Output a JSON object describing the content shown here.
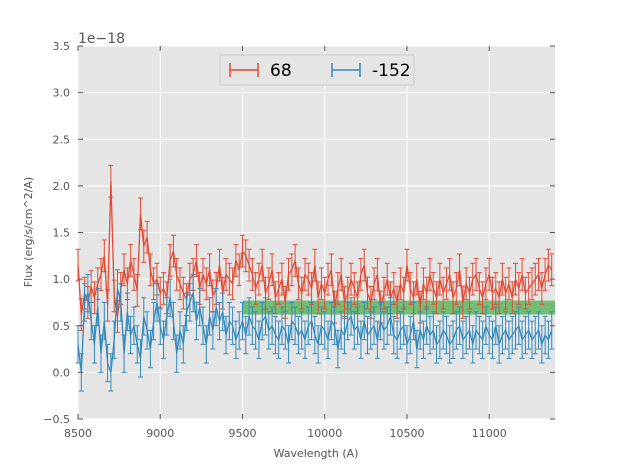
{
  "chart_data": {
    "type": "line",
    "title": "",
    "xlabel": "Wavelength (A)",
    "ylabel": "Flux (erg/s/cm^2/A)",
    "y_offset_label": "1e−18",
    "xlim": [
      8500,
      11400
    ],
    "ylim": [
      -0.5,
      3.5
    ],
    "xticks": [
      8500,
      9000,
      9500,
      10000,
      10500,
      11000
    ],
    "yticks": [
      -0.5,
      0.0,
      0.5,
      1.0,
      1.5,
      2.0,
      2.5,
      3.0,
      3.5
    ],
    "ytick_labels": [
      "−0.5",
      "0.0",
      "0.5",
      "1.0",
      "1.5",
      "2.0",
      "2.5",
      "3.0",
      "3.5"
    ],
    "grid": true,
    "background": "#e5e5e5",
    "legend_position": "top-center",
    "band": {
      "x": [
        9500,
        11400
      ],
      "y": [
        0.62,
        0.77
      ],
      "color": "#4cae4c"
    },
    "x": [
      8500,
      8520,
      8540,
      8560,
      8580,
      8600,
      8620,
      8640,
      8660,
      8680,
      8700,
      8720,
      8740,
      8760,
      8780,
      8800,
      8820,
      8840,
      8860,
      8880,
      8900,
      8920,
      8940,
      8960,
      8980,
      9000,
      9020,
      9040,
      9060,
      9080,
      9100,
      9120,
      9140,
      9160,
      9180,
      9200,
      9220,
      9240,
      9260,
      9280,
      9300,
      9320,
      9340,
      9360,
      9380,
      9400,
      9420,
      9440,
      9460,
      9480,
      9500,
      9520,
      9540,
      9560,
      9580,
      9600,
      9620,
      9640,
      9660,
      9680,
      9700,
      9720,
      9740,
      9760,
      9780,
      9800,
      9820,
      9840,
      9860,
      9880,
      9900,
      9920,
      9940,
      9960,
      9980,
      10000,
      10020,
      10040,
      10060,
      10080,
      10100,
      10120,
      10140,
      10160,
      10180,
      10200,
      10220,
      10240,
      10260,
      10280,
      10300,
      10320,
      10340,
      10360,
      10380,
      10400,
      10420,
      10440,
      10460,
      10480,
      10500,
      10520,
      10540,
      10560,
      10580,
      10600,
      10620,
      10640,
      10660,
      10680,
      10700,
      10720,
      10740,
      10760,
      10780,
      10800,
      10820,
      10840,
      10860,
      10880,
      10900,
      10920,
      10940,
      10960,
      10980,
      11000,
      11020,
      11040,
      11060,
      11080,
      11100,
      11120,
      11140,
      11160,
      11180,
      11200,
      11220,
      11240,
      11260,
      11280,
      11300,
      11320,
      11340,
      11360,
      11380
    ],
    "series": [
      {
        "name": "68",
        "color": "#e24a33",
        "error": 0.17,
        "values": [
          1.15,
          0.62,
          0.85,
          0.75,
          0.92,
          0.8,
          0.95,
          1.05,
          1.25,
          0.72,
          2.05,
          0.82,
          0.6,
          0.9,
          1.1,
          0.95,
          1.2,
          1.05,
          0.88,
          1.7,
          1.35,
          1.45,
          1.1,
          0.95,
          1.0,
          0.85,
          0.9,
          0.8,
          1.2,
          1.3,
          1.05,
          0.95,
          0.85,
          0.78,
          1.0,
          1.05,
          1.2,
          0.9,
          1.05,
          0.95,
          1.1,
          0.82,
          0.9,
          1.15,
          0.85,
          1.05,
          1.0,
          0.95,
          1.2,
          1.1,
          1.3,
          1.25,
          1.15,
          1.05,
          0.9,
          1.0,
          1.15,
          0.85,
          0.95,
          1.1,
          0.8,
          0.9,
          1.0,
          0.75,
          1.05,
          1.1,
          1.2,
          0.95,
          0.85,
          1.05,
          1.0,
          0.9,
          1.15,
          0.8,
          0.95,
          0.85,
          1.0,
          1.1,
          0.7,
          0.9,
          1.05,
          0.75,
          0.85,
          1.0,
          0.9,
          0.8,
          1.05,
          1.15,
          0.85,
          0.75,
          0.95,
          1.05,
          0.7,
          0.85,
          1.0,
          0.8,
          0.9,
          0.75,
          0.95,
          0.85,
          1.15,
          0.9,
          0.8,
          1.0,
          0.7,
          0.95,
          0.85,
          1.05,
          0.9,
          0.8,
          1.0,
          0.85,
          0.95,
          1.05,
          0.8,
          0.9,
          1.1,
          0.75,
          0.95,
          0.85,
          1.0,
          1.05,
          0.9,
          0.8,
          0.95,
          1.05,
          0.85,
          0.9,
          0.8,
          1.0,
          0.85,
          0.95,
          0.8,
          1.0,
          0.9,
          1.05,
          0.85,
          0.9,
          0.95,
          1.0,
          1.05,
          0.9,
          1.05,
          1.15,
          1.1
        ]
      },
      {
        "name": "-152",
        "color": "#348abd",
        "error": 0.2,
        "values": [
          0.3,
          0.0,
          0.75,
          0.85,
          0.55,
          0.3,
          0.7,
          0.2,
          0.55,
          0.1,
          0.0,
          0.35,
          0.9,
          0.75,
          0.2,
          0.65,
          0.4,
          0.5,
          0.3,
          0.15,
          0.6,
          0.45,
          0.25,
          0.55,
          0.75,
          0.5,
          0.35,
          0.6,
          0.8,
          0.55,
          0.2,
          0.45,
          0.3,
          0.65,
          0.75,
          0.85,
          0.55,
          0.7,
          0.5,
          0.3,
          0.6,
          0.45,
          0.7,
          0.55,
          0.65,
          0.4,
          0.55,
          0.5,
          0.35,
          0.45,
          0.55,
          0.4,
          0.6,
          0.5,
          0.45,
          0.35,
          0.55,
          0.6,
          0.45,
          0.5,
          0.4,
          0.35,
          0.5,
          0.45,
          0.3,
          0.55,
          0.5,
          0.4,
          0.45,
          0.35,
          0.5,
          0.55,
          0.4,
          0.3,
          0.5,
          0.45,
          0.35,
          0.55,
          0.5,
          0.25,
          0.45,
          0.4,
          0.55,
          0.6,
          0.45,
          0.5,
          0.35,
          0.55,
          0.4,
          0.45,
          0.5,
          0.35,
          0.55,
          0.45,
          0.5,
          0.6,
          0.4,
          0.35,
          0.45,
          0.5,
          0.3,
          0.4,
          0.55,
          0.25,
          0.45,
          0.35,
          0.5,
          0.4,
          0.45,
          0.3,
          0.35,
          0.45,
          0.4,
          0.3,
          0.35,
          0.45,
          0.5,
          0.35,
          0.4,
          0.45,
          0.3,
          0.45,
          0.4,
          0.35,
          0.5,
          0.4,
          0.35,
          0.5,
          0.3,
          0.4,
          0.45,
          0.35,
          0.4,
          0.45,
          0.5,
          0.35,
          0.4,
          0.45,
          0.35,
          0.4,
          0.45,
          0.3,
          0.4,
          0.35,
          0.45
        ]
      }
    ]
  }
}
